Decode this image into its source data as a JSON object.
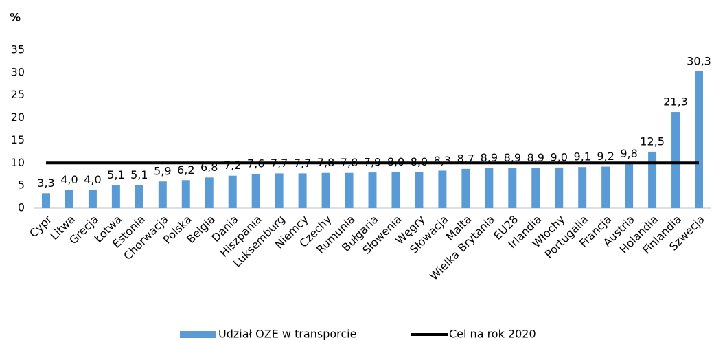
{
  "chart_data": {
    "type": "bar",
    "y_label": "%",
    "categories": [
      "Cypr",
      "Litwa",
      "Grecja",
      "Łotwa",
      "Estonia",
      "Chorwacja",
      "Polska",
      "Belgia",
      "Dania",
      "Hiszpania",
      "Luksemburg",
      "Niemcy",
      "Czechy",
      "Rumunia",
      "Bułgaria",
      "Słowenia",
      "Węgry",
      "Słowacja",
      "Malta",
      "Wielka Brytania",
      "EU28",
      "Irlandia",
      "Włochy",
      "Portugalia",
      "Francja",
      "Austria",
      "Holandia",
      "Finlandia",
      "Szwecja"
    ],
    "series": [
      {
        "name": "Udział OZE w transporcie",
        "type": "bar",
        "color": "#5b9bd5",
        "values": [
          3.3,
          4.0,
          4.0,
          5.1,
          5.1,
          5.9,
          6.2,
          6.8,
          7.2,
          7.6,
          7.7,
          7.7,
          7.8,
          7.8,
          7.9,
          8.0,
          8.0,
          8.3,
          8.7,
          8.9,
          8.9,
          8.9,
          9.0,
          9.1,
          9.2,
          9.8,
          12.5,
          21.3,
          30.3
        ],
        "value_labels": [
          "3,3",
          "4,0",
          "4,0",
          "5,1",
          "5,1",
          "5,9",
          "6,2",
          "6,8",
          "7,2",
          "7,6",
          "7,7",
          "7,7",
          "7,8",
          "7,8",
          "7,9",
          "8,0",
          "8,0",
          "8,3",
          "8,7",
          "8,9",
          "8,9",
          "8,9",
          "9,0",
          "9,1",
          "9,2",
          "9,8",
          "12,5",
          "21,3",
          "30,3"
        ]
      },
      {
        "name": "Cel na rok 2020",
        "type": "line",
        "color": "#000000",
        "values": [
          10,
          10,
          10,
          10,
          10,
          10,
          10,
          10,
          10,
          10,
          10,
          10,
          10,
          10,
          10,
          10,
          10,
          10,
          10,
          10,
          10,
          10,
          10,
          10,
          10,
          10,
          10,
          10,
          10
        ]
      }
    ],
    "ylim": [
      0,
      35
    ],
    "yticks": [
      0,
      5,
      10,
      15,
      20,
      25,
      30,
      35
    ],
    "grid": false
  }
}
